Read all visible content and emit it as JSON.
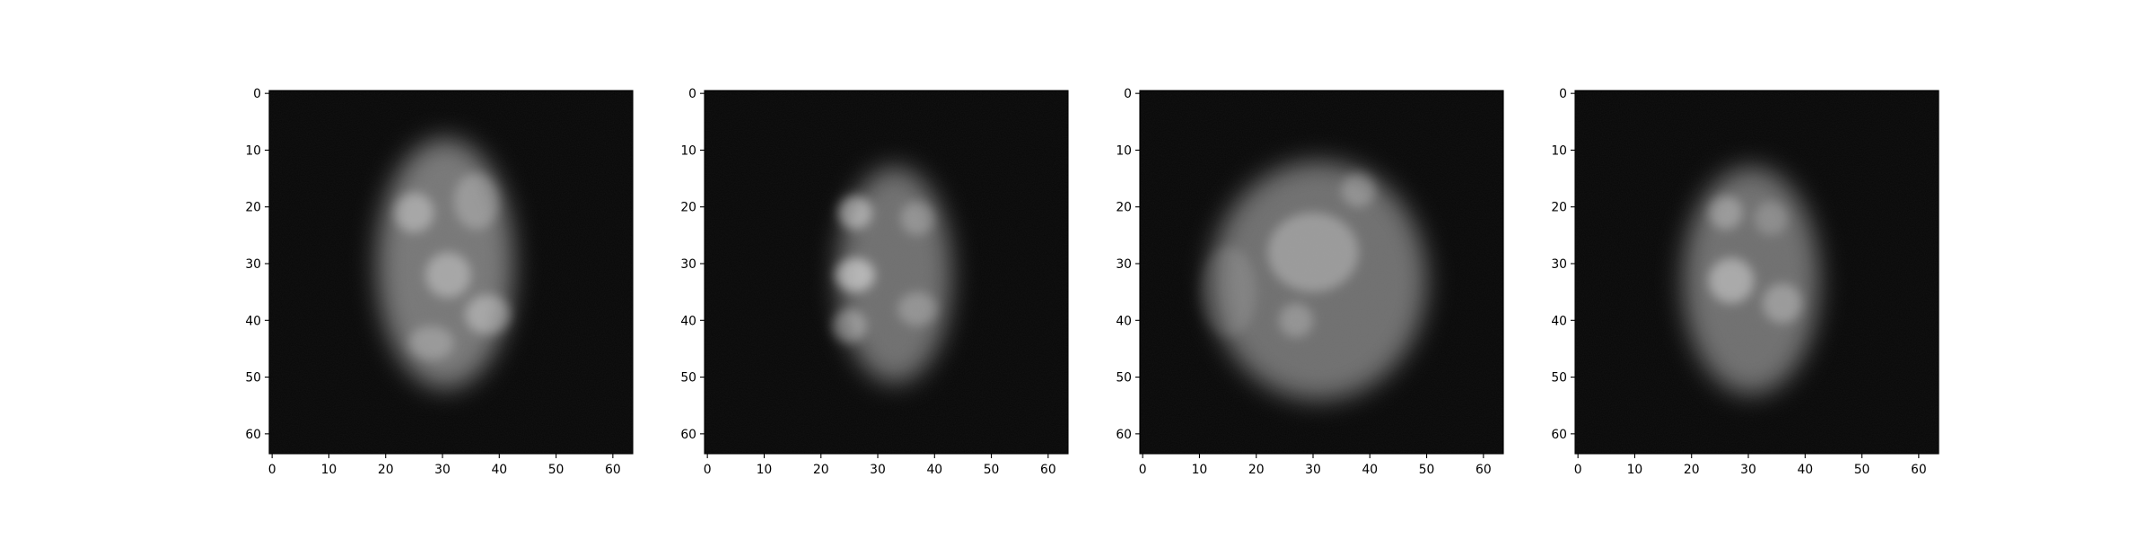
{
  "figure": {
    "panel_count": 4,
    "colormap": "gray",
    "background": "#ffffff",
    "frame_color": "#000000",
    "image_background": "#070707"
  },
  "axes": {
    "x_ticks": [
      "0",
      "10",
      "20",
      "30",
      "40",
      "50",
      "60"
    ],
    "y_ticks": [
      "0",
      "10",
      "20",
      "30",
      "40",
      "50",
      "60"
    ],
    "xlim": [
      -0.5,
      63.5
    ],
    "ylim": [
      63.5,
      -0.5
    ]
  },
  "panels": [
    {
      "name": "panel-1",
      "image_description": "blurry grayscale blob, tall rectangular shape",
      "blobs": [
        {
          "cx": 30.5,
          "cy": 30,
          "rx": 12,
          "ry": 22,
          "level": 0.45
        },
        {
          "cx": 25,
          "cy": 21,
          "rx": 3.5,
          "ry": 3.5,
          "level": 0.35
        },
        {
          "cx": 31,
          "cy": 32,
          "rx": 4,
          "ry": 4,
          "level": 0.35
        },
        {
          "cx": 38,
          "cy": 39,
          "rx": 4,
          "ry": 3.5,
          "level": 0.35
        },
        {
          "cx": 36,
          "cy": 19,
          "rx": 4,
          "ry": 5,
          "level": 0.25
        },
        {
          "cx": 28,
          "cy": 44,
          "rx": 4,
          "ry": 3,
          "level": 0.25
        }
      ]
    },
    {
      "name": "panel-2",
      "image_description": "blurry grayscale blob, half-moon shape",
      "blobs": [
        {
          "cx": 33,
          "cy": 32,
          "rx": 10,
          "ry": 19,
          "level": 0.42
        },
        {
          "cx": 26,
          "cy": 21,
          "rx": 3,
          "ry": 3,
          "level": 0.45
        },
        {
          "cx": 26,
          "cy": 32,
          "rx": 3.5,
          "ry": 3,
          "level": 0.5
        },
        {
          "cx": 25,
          "cy": 41,
          "rx": 3,
          "ry": 3,
          "level": 0.35
        },
        {
          "cx": 37,
          "cy": 22,
          "rx": 3,
          "ry": 3,
          "level": 0.25
        },
        {
          "cx": 37,
          "cy": 38,
          "rx": 3.5,
          "ry": 3,
          "level": 0.25
        }
      ]
    },
    {
      "name": "panel-3",
      "image_description": "blurry grayscale blob, large round shape",
      "blobs": [
        {
          "cx": 31,
          "cy": 33,
          "rx": 19,
          "ry": 21,
          "level": 0.42
        },
        {
          "cx": 30,
          "cy": 28,
          "rx": 8,
          "ry": 7,
          "level": 0.3
        },
        {
          "cx": 38,
          "cy": 17,
          "rx": 3,
          "ry": 3,
          "level": 0.25
        },
        {
          "cx": 27,
          "cy": 40,
          "rx": 3,
          "ry": 3,
          "level": 0.25
        },
        {
          "cx": 15,
          "cy": 35,
          "rx": 5,
          "ry": 8,
          "level": 0.12
        }
      ]
    },
    {
      "name": "panel-4",
      "image_description": "blurry grayscale blob, oval shape",
      "blobs": [
        {
          "cx": 30.5,
          "cy": 33,
          "rx": 12,
          "ry": 20,
          "level": 0.42
        },
        {
          "cx": 26,
          "cy": 21,
          "rx": 3,
          "ry": 3,
          "level": 0.3
        },
        {
          "cx": 27,
          "cy": 33,
          "rx": 4,
          "ry": 4,
          "level": 0.4
        },
        {
          "cx": 36,
          "cy": 37,
          "rx": 3.5,
          "ry": 3.5,
          "level": 0.3
        },
        {
          "cx": 34,
          "cy": 22,
          "rx": 3,
          "ry": 3,
          "level": 0.2
        }
      ]
    }
  ]
}
